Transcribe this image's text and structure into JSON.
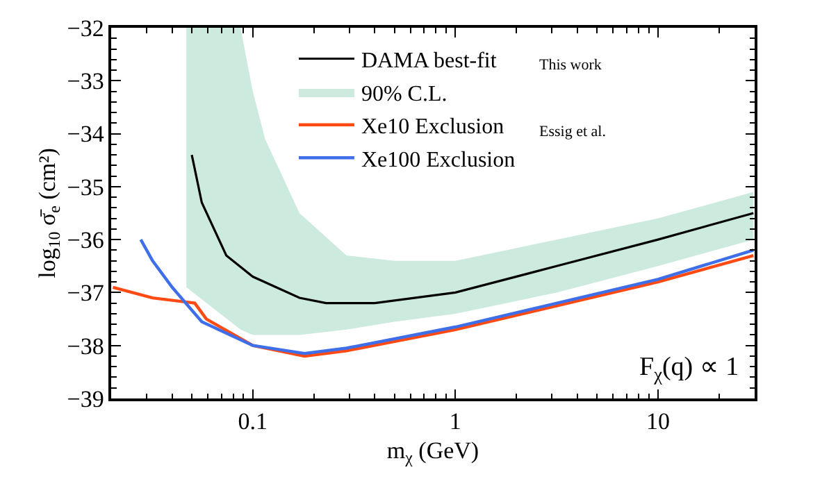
{
  "chart_data": {
    "type": "line",
    "xlabel": "m$_{χ}$ (GeV)",
    "ylabel": "log$_{10}$ σ̄$_{e}$ (cm²)",
    "log": "x",
    "xlim": [
      0.02,
      30
    ],
    "xticks": [
      0.1,
      1,
      10
    ],
    "ylim": [
      -39,
      -32
    ],
    "yticks": [
      {
        "value": -39,
        "label": "−39"
      },
      {
        "value": -38,
        "label": "−38"
      },
      {
        "value": -37,
        "label": "−37"
      },
      {
        "value": -36,
        "label": "−36"
      },
      {
        "value": -35,
        "label": "−35"
      },
      {
        "value": -34,
        "label": "−34"
      },
      {
        "value": -33,
        "label": "−33"
      },
      {
        "value": -32,
        "label": "−32"
      }
    ],
    "legend": "top",
    "marker": "none",
    "line_style": "solid",
    "series": [
      {
        "name": "DAMA best-fit",
        "color": "#000000",
        "x": [
          0.05,
          0.056,
          0.074,
          0.1,
          0.17,
          0.23,
          0.4,
          1,
          3.16,
          10,
          29.6
        ],
        "values": [
          -34.4,
          -35.3,
          -36.3,
          -36.7,
          -37.1,
          -37.2,
          -37.2,
          -37.0,
          -36.5,
          -36.0,
          -35.5
        ]
      },
      {
        "name": "90% C.L.",
        "type": "area",
        "color": "#cdeade",
        "x": [
          0.047,
          0.087,
          0.1,
          0.115,
          0.17,
          0.29,
          0.5,
          1,
          3.16,
          10,
          29.6
        ],
        "values": [
          null,
          null,
          null,
          null,
          null,
          null,
          null,
          null,
          null,
          null,
          null
        ],
        "lower": [
          -36.9,
          -37.7,
          -37.8,
          -37.8,
          -37.8,
          -37.7,
          -37.55,
          -37.4,
          -37.0,
          -36.5,
          -36.0
        ],
        "upper": [
          -32,
          -32,
          -33.2,
          -34.1,
          -35.5,
          -36.3,
          -36.4,
          -36.4,
          -36.0,
          -35.6,
          -35.1
        ]
      },
      {
        "name": "Xe10 Exclusion",
        "color": "#ff4a14",
        "x": [
          0.0204,
          0.032,
          0.0517,
          0.059,
          0.1,
          0.18,
          0.29,
          1,
          10,
          29.6
        ],
        "values": [
          -36.9,
          -37.1,
          -37.2,
          -37.5,
          -38.0,
          -38.2,
          -38.1,
          -37.7,
          -36.8,
          -36.3
        ]
      },
      {
        "name": "Xe100 Exclusion",
        "color": "#3e6ee8",
        "x": [
          0.028,
          0.032,
          0.04,
          0.056,
          0.1,
          0.18,
          0.29,
          1,
          10,
          29.6
        ],
        "values": [
          -36.0,
          -36.4,
          -36.9,
          -37.55,
          -38.0,
          -38.15,
          -38.05,
          -37.65,
          -36.75,
          -36.2
        ]
      }
    ],
    "annotations": [
      "This work",
      "Essig et al.",
      "F$_{χ}$(q) ∝ 1"
    ]
  }
}
